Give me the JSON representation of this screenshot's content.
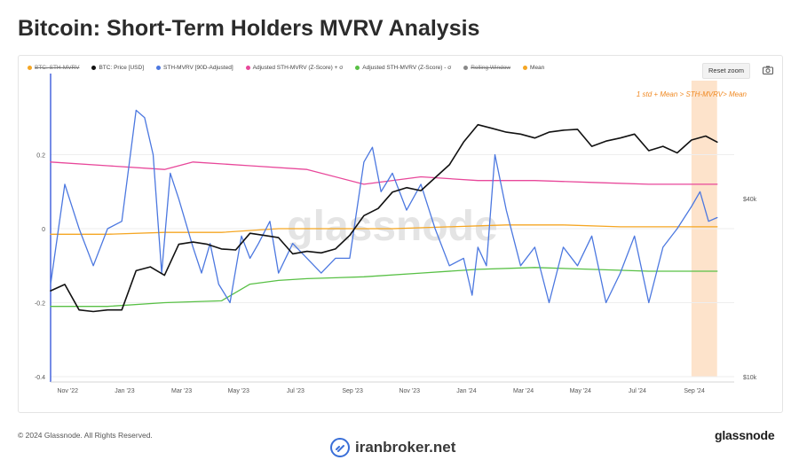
{
  "page": {
    "title": "Bitcoin: Short-Term Holders MVRV Analysis",
    "copyright": "© 2024 Glassnode. All Rights Reserved.",
    "brand": "glassnode",
    "credit": "iranbroker.net",
    "watermark": "glassnode"
  },
  "toolbar": {
    "reset_zoom_label": "Reset zoom",
    "camera_icon": "camera-icon"
  },
  "colors": {
    "price": "#111111",
    "sth_mvrv": "#4c78e0",
    "upper": "#e8479a",
    "lower": "#58c045",
    "mean": "#f5a623",
    "highlight": "#fde3cb",
    "axis_line": "#3b5bdb"
  },
  "legend": [
    {
      "label": "BTC: STH-MVRV",
      "color": "#f5a623",
      "enabled": false
    },
    {
      "label": "BTC: Price [USD]",
      "color": "#111111",
      "enabled": true
    },
    {
      "label": "STH-MVRV [90D-Adjusted]",
      "color": "#4c78e0",
      "enabled": true
    },
    {
      "label": "Adjusted STH-MVRV (Z-Score) + σ",
      "color": "#e8479a",
      "enabled": true
    },
    {
      "label": "Adjusted STH-MVRV (Z-Score) - σ",
      "color": "#58c045",
      "enabled": true
    },
    {
      "label": "Rolling Window",
      "color": "#888888",
      "enabled": false
    },
    {
      "label": "Mean",
      "color": "#f5a623",
      "enabled": true
    }
  ],
  "chart_data": {
    "type": "line",
    "annotation": "1 std + Mean > STH-MVRV>  Mean",
    "x_ticks": [
      "Nov '22",
      "Jan '23",
      "Mar '23",
      "May '23",
      "Jul '23",
      "Sep '23",
      "Nov '23",
      "Jan '24",
      "Mar '24",
      "May '24",
      "Jul '24",
      "Sep '24"
    ],
    "y_left": {
      "ticks": [
        "0.2",
        "0",
        "-0.2",
        "-0.4"
      ],
      "values": [
        0.2,
        0,
        -0.2,
        -0.4
      ],
      "range": [
        -0.4,
        0.4
      ]
    },
    "y_right": {
      "ticks": [
        "$40k",
        "$10k"
      ],
      "values": [
        40000,
        10000
      ],
      "scale": "log",
      "range": [
        10000,
        100000
      ]
    },
    "x_range": [
      0,
      24
    ],
    "highlight_x": [
      22.5,
      23.4
    ],
    "series": [
      {
        "name": "BTC: Price [USD]",
        "axis": "right",
        "x": [
          0,
          0.5,
          1.0,
          1.5,
          2.0,
          2.5,
          3.0,
          3.5,
          4.0,
          4.5,
          5.0,
          5.5,
          6.0,
          6.5,
          7.0,
          7.5,
          8.0,
          8.5,
          9.0,
          9.5,
          10.0,
          10.5,
          11.0,
          11.5,
          12.0,
          12.5,
          13.0,
          13.5,
          14.0,
          14.5,
          15.0,
          15.5,
          16.0,
          16.5,
          17.0,
          17.5,
          18.0,
          18.5,
          19.0,
          19.5,
          20.0,
          20.5,
          21.0,
          21.5,
          22.0,
          22.5,
          23.0,
          23.4
        ],
        "y": [
          19500,
          20500,
          16800,
          16600,
          16800,
          16800,
          22800,
          23500,
          22000,
          28000,
          28500,
          28000,
          27000,
          26800,
          30500,
          30000,
          29500,
          26000,
          26500,
          26200,
          27000,
          30000,
          35000,
          37000,
          42000,
          43500,
          42500,
          47000,
          52000,
          62000,
          71000,
          69000,
          67000,
          66000,
          64000,
          67000,
          68000,
          68500,
          60000,
          62500,
          64000,
          66000,
          58000,
          60000,
          57000,
          63000,
          65000,
          62000
        ]
      },
      {
        "name": "STH-MVRV [90D-Adjusted]",
        "axis": "left",
        "x": [
          0,
          0.5,
          1.0,
          1.5,
          2.0,
          2.5,
          3.0,
          3.3,
          3.6,
          3.9,
          4.2,
          4.5,
          5.0,
          5.3,
          5.6,
          5.9,
          6.3,
          6.7,
          7.0,
          7.3,
          7.7,
          8.0,
          8.5,
          9.0,
          9.5,
          10.0,
          10.5,
          11.0,
          11.3,
          11.6,
          12.0,
          12.5,
          13.0,
          13.5,
          14.0,
          14.5,
          14.8,
          15.0,
          15.3,
          15.6,
          16.0,
          16.5,
          17.0,
          17.5,
          18.0,
          18.5,
          19.0,
          19.5,
          20.0,
          20.5,
          21.0,
          21.5,
          22.0,
          22.5,
          22.8,
          23.1,
          23.4
        ],
        "y": [
          -0.15,
          0.12,
          0.0,
          -0.1,
          0.0,
          0.02,
          0.32,
          0.3,
          0.2,
          -0.12,
          0.15,
          0.08,
          -0.05,
          -0.12,
          -0.04,
          -0.15,
          -0.2,
          -0.02,
          -0.08,
          -0.04,
          0.02,
          -0.12,
          -0.04,
          -0.08,
          -0.12,
          -0.08,
          -0.08,
          0.18,
          0.22,
          0.1,
          0.15,
          0.05,
          0.12,
          0.0,
          -0.1,
          -0.08,
          -0.18,
          -0.05,
          -0.1,
          0.2,
          0.05,
          -0.1,
          -0.05,
          -0.2,
          -0.05,
          -0.1,
          -0.02,
          -0.2,
          -0.12,
          -0.02,
          -0.2,
          -0.05,
          0.0,
          0.06,
          0.1,
          0.02,
          0.03
        ]
      },
      {
        "name": "Adjusted STH-MVRV (Z-Score) + σ",
        "axis": "left",
        "x": [
          0,
          2,
          4,
          5,
          7,
          9,
          11,
          13,
          15,
          17,
          19,
          21,
          23.4
        ],
        "y": [
          0.18,
          0.17,
          0.16,
          0.18,
          0.17,
          0.16,
          0.12,
          0.14,
          0.13,
          0.13,
          0.125,
          0.12,
          0.12
        ]
      },
      {
        "name": "Adjusted STH-MVRV (Z-Score) - σ",
        "axis": "left",
        "x": [
          0,
          2,
          4,
          6,
          7,
          8,
          9,
          11,
          13,
          15,
          17,
          19,
          21,
          23.4
        ],
        "y": [
          -0.21,
          -0.21,
          -0.2,
          -0.195,
          -0.15,
          -0.14,
          -0.135,
          -0.13,
          -0.12,
          -0.11,
          -0.105,
          -0.11,
          -0.115,
          -0.115
        ]
      },
      {
        "name": "Mean",
        "axis": "left",
        "x": [
          0,
          2,
          4,
          6,
          8,
          10,
          12,
          14,
          16,
          18,
          20,
          22,
          23.4
        ],
        "y": [
          -0.015,
          -0.015,
          -0.01,
          -0.01,
          0.0,
          0.0,
          0.0,
          0.005,
          0.01,
          0.01,
          0.005,
          0.005,
          0.005
        ]
      }
    ]
  }
}
